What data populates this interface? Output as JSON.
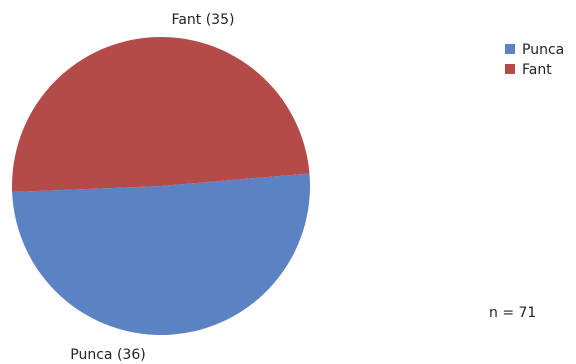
{
  "chart_data": {
    "type": "pie",
    "slices": [
      {
        "name": "Punca",
        "value": 36,
        "color": "#5b82c2"
      },
      {
        "name": "Fant",
        "value": 35,
        "color": "#b34b48"
      }
    ],
    "slice_labels": [
      "Punca (36)",
      "Fant (35)"
    ],
    "legend": {
      "placement": "top-right",
      "entries": [
        "Punca",
        "Fant"
      ]
    },
    "footnote": "n = 71"
  }
}
